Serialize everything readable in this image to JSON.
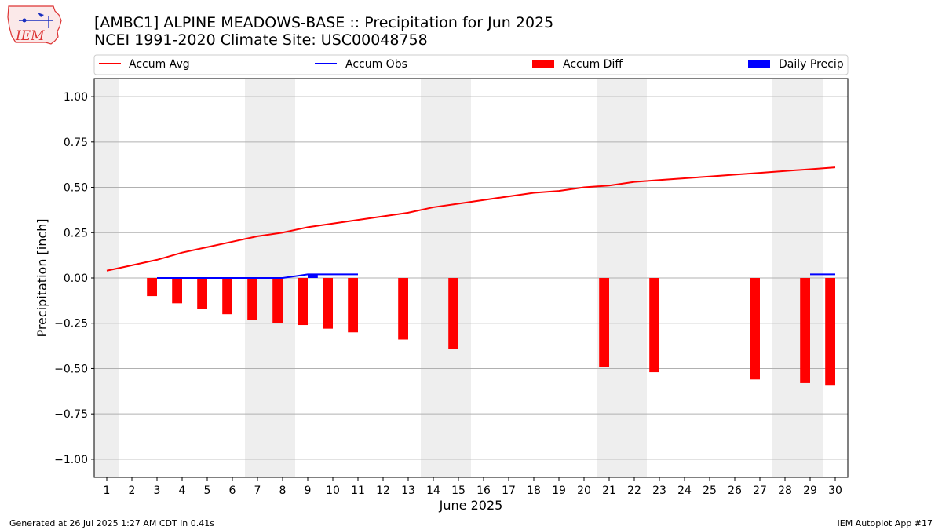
{
  "header": {
    "title_line1": "[AMBC1] ALPINE MEADOWS-BASE :: Precipitation for Jun 2025",
    "title_line2": "NCEI 1991-2020 Climate Site: USC00048758",
    "logo_text": "IEM"
  },
  "footer": {
    "generated": "Generated at 26 Jul 2025 1:27 AM CDT in 0.41s",
    "app": "IEM Autoplot App #17"
  },
  "colors": {
    "accum_avg": "#ff0000",
    "accum_obs": "#0000ff",
    "accum_diff": "#ff0000",
    "daily_precip": "#0000ff",
    "weekend_band": "#eeeeee",
    "grid": "#b0b0b0"
  },
  "chart_data": {
    "type": "bar",
    "xlabel": "June 2025",
    "ylabel": "Precipitation [inch]",
    "xlim": [
      0.5,
      30.5
    ],
    "ylim": [
      -1.1,
      1.1
    ],
    "grid": true,
    "legend_position": "top",
    "x_ticks": [
      1,
      2,
      3,
      4,
      5,
      6,
      7,
      8,
      9,
      10,
      11,
      12,
      13,
      14,
      15,
      16,
      17,
      18,
      19,
      20,
      21,
      22,
      23,
      24,
      25,
      26,
      27,
      28,
      29,
      30
    ],
    "y_ticks": [
      -1.0,
      -0.75,
      -0.5,
      -0.25,
      0.0,
      0.25,
      0.5,
      0.75,
      1.0
    ],
    "y_tick_labels": [
      "−1.00",
      "−0.75",
      "−0.50",
      "−0.25",
      "0.00",
      "0.25",
      "0.50",
      "0.75",
      "1.00"
    ],
    "weekend_days": [
      1,
      7,
      8,
      14,
      15,
      21,
      22,
      28,
      29
    ],
    "legend": [
      "Accum Avg",
      "Accum Obs",
      "Accum Diff",
      "Daily Precip"
    ],
    "series": [
      {
        "name": "Accum Avg",
        "type": "line",
        "x": [
          1,
          2,
          3,
          4,
          5,
          6,
          7,
          8,
          9,
          10,
          11,
          12,
          13,
          14,
          15,
          16,
          17,
          18,
          19,
          20,
          21,
          22,
          23,
          24,
          25,
          26,
          27,
          28,
          29,
          30
        ],
        "values": [
          0.04,
          0.07,
          0.1,
          0.14,
          0.17,
          0.2,
          0.23,
          0.25,
          0.28,
          0.3,
          0.32,
          0.34,
          0.36,
          0.39,
          0.41,
          0.43,
          0.45,
          0.47,
          0.48,
          0.5,
          0.51,
          0.53,
          0.54,
          0.55,
          0.56,
          0.57,
          0.58,
          0.59,
          0.6,
          0.61
        ]
      },
      {
        "name": "Accum Obs",
        "type": "line",
        "segments": [
          {
            "x": [
              3,
              4,
              5,
              6,
              7,
              8,
              9,
              10,
              11
            ],
            "values": [
              0.0,
              0.0,
              0.0,
              0.0,
              0.0,
              0.0,
              0.02,
              0.02,
              0.02
            ]
          },
          {
            "x": [
              29,
              30
            ],
            "values": [
              0.02,
              0.02
            ]
          }
        ]
      },
      {
        "name": "Accum Diff",
        "type": "bar",
        "x": [
          3,
          4,
          5,
          6,
          7,
          8,
          9,
          10,
          11,
          13,
          15,
          21,
          23,
          27,
          29,
          30
        ],
        "values": [
          -0.1,
          -0.14,
          -0.17,
          -0.2,
          -0.23,
          -0.25,
          -0.26,
          -0.28,
          -0.3,
          -0.34,
          -0.39,
          -0.49,
          -0.52,
          -0.56,
          -0.58,
          -0.59
        ]
      },
      {
        "name": "Daily Precip",
        "type": "bar",
        "x": [
          9
        ],
        "values": [
          0.02
        ]
      }
    ]
  }
}
